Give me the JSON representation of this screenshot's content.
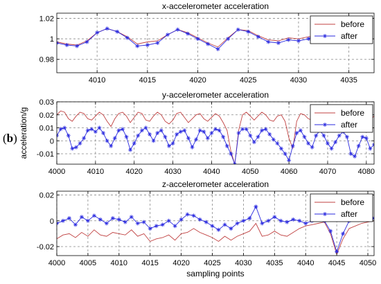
{
  "panel_label_open": "(",
  "panel_label_letter": "b",
  "panel_label_close": ")",
  "colors": {
    "before": "#c04040",
    "after": "#2a2adf",
    "grid": "#888888"
  },
  "chart_data": [
    {
      "type": "line",
      "title": "x-accelerometer acceleration",
      "xlabel": "",
      "ylabel": "",
      "xlim": [
        4006,
        4037.5
      ],
      "ylim": [
        0.967,
        1.025
      ],
      "xticks": [
        4010,
        4015,
        4020,
        4025,
        4030,
        4035
      ],
      "yticks": [
        0.98,
        1,
        1.02
      ],
      "ytick_labels": [
        "0.98",
        "1",
        "1.02"
      ],
      "legend": "top-right",
      "grid": true,
      "series": [
        {
          "name": "before",
          "style": "line",
          "color": "#c04040",
          "x": [
            4006,
            4007,
            4008,
            4009,
            4010,
            4011,
            4012,
            4013,
            4014,
            4015,
            4016,
            4017,
            4018,
            4019,
            4020,
            4021,
            4022,
            4023,
            4024,
            4025,
            4026,
            4027,
            4028,
            4029,
            4030,
            4031,
            4032,
            4033,
            4034,
            4035,
            4036,
            4037
          ],
          "y": [
            0.997,
            0.995,
            0.994,
            0.998,
            1.006,
            1.01,
            1.007,
            1.002,
            0.995,
            0.997,
            0.998,
            1.004,
            1.009,
            1.006,
            1.001,
            0.996,
            0.992,
            1.001,
            1.009,
            1.008,
            1.003,
            0.999,
            0.998,
            1.001,
            1.0,
            1.002,
            1.004,
            1.002,
            1.006,
            1.006,
            1.004,
            1.008
          ]
        },
        {
          "name": "after",
          "style": "line-star",
          "color": "#2a2adf",
          "x": [
            4006,
            4007,
            4008,
            4009,
            4010,
            4011,
            4012,
            4013,
            4014,
            4015,
            4016,
            4017,
            4018,
            4019,
            4020,
            4021,
            4022,
            4023,
            4024,
            4025,
            4026,
            4027,
            4028,
            4029,
            4030,
            4031,
            4032,
            4033,
            4034,
            4035,
            4036,
            4037
          ],
          "y": [
            0.996,
            0.994,
            0.993,
            0.997,
            1.006,
            1.01,
            1.007,
            1.001,
            0.993,
            0.994,
            0.996,
            1.004,
            1.009,
            1.005,
            1.0,
            0.995,
            0.99,
            1.0,
            1.009,
            1.007,
            1.002,
            0.997,
            0.996,
            0.999,
            0.998,
            1.0,
            1.003,
            1.001,
            1.004,
            1.003,
            1.0,
            1.002
          ]
        }
      ]
    },
    {
      "type": "line",
      "title": "y-accelerometer acceleration",
      "xlabel": "",
      "ylabel": "acceleration/g",
      "xlim": [
        4000,
        4082
      ],
      "ylim": [
        -0.018,
        0.03
      ],
      "xticks": [
        4000,
        4010,
        4020,
        4030,
        4040,
        4050,
        4060,
        4070,
        4080
      ],
      "yticks": [
        -0.01,
        0,
        0.01,
        0.02,
        0.03
      ],
      "ytick_labels": [
        "-0.01",
        "0",
        "0.01",
        "0.02",
        "0.03"
      ],
      "legend": "top-right",
      "grid": true,
      "series": [
        {
          "name": "before",
          "style": "line",
          "color": "#c04040",
          "x": [
            4000,
            4001,
            4002,
            4003,
            4004,
            4005,
            4006,
            4007,
            4008,
            4009,
            4010,
            4011,
            4012,
            4013,
            4014,
            4015,
            4016,
            4017,
            4018,
            4019,
            4020,
            4021,
            4022,
            4023,
            4024,
            4025,
            4026,
            4027,
            4028,
            4029,
            4030,
            4031,
            4032,
            4033,
            4034,
            4035,
            4036,
            4037,
            4038,
            4039,
            4040,
            4041,
            4042,
            4043,
            4044,
            4045,
            4046,
            4047,
            4048,
            4049,
            4050,
            4051,
            4052,
            4053,
            4054,
            4055,
            4056,
            4057,
            4058,
            4059,
            4060,
            4061,
            4062,
            4063,
            4064,
            4065,
            4066,
            4067,
            4068,
            4069,
            4070,
            4071,
            4072,
            4073,
            4074,
            4075,
            4076,
            4077,
            4078,
            4079,
            4080,
            4081,
            4082
          ],
          "y": [
            0.02,
            0.023,
            0.022,
            0.017,
            0.015,
            0.019,
            0.022,
            0.021,
            0.017,
            0.016,
            0.019,
            0.022,
            0.02,
            0.015,
            0.011,
            0.017,
            0.021,
            0.022,
            0.019,
            0.014,
            0.018,
            0.022,
            0.021,
            0.016,
            0.015,
            0.019,
            0.022,
            0.02,
            0.015,
            0.013,
            0.016,
            0.021,
            0.022,
            0.018,
            0.014,
            0.017,
            0.02,
            0.021,
            0.017,
            0.015,
            0.018,
            0.021,
            0.019,
            0.014,
            0.008,
            -0.008,
            -0.018,
            0.008,
            0.02,
            0.022,
            0.019,
            0.016,
            0.019,
            0.022,
            0.02,
            0.016,
            0.015,
            0.019,
            0.02,
            0.015,
            0.002,
            -0.006,
            0.015,
            0.021,
            0.02,
            0.017,
            0.016,
            0.019,
            0.021,
            0.02,
            0.016,
            0.014,
            0.018,
            0.021,
            0.02,
            0.016,
            0.013,
            0.016,
            0.02,
            0.021,
            0.018,
            0.016,
            0.019
          ]
        },
        {
          "name": "after",
          "style": "line-star",
          "color": "#2a2adf",
          "x": [
            4000,
            4001,
            4002,
            4003,
            4004,
            4005,
            4006,
            4007,
            4008,
            4009,
            4010,
            4011,
            4012,
            4013,
            4014,
            4015,
            4016,
            4017,
            4018,
            4019,
            4020,
            4021,
            4022,
            4023,
            4024,
            4025,
            4026,
            4027,
            4028,
            4029,
            4030,
            4031,
            4032,
            4033,
            4034,
            4035,
            4036,
            4037,
            4038,
            4039,
            4040,
            4041,
            4042,
            4043,
            4044,
            4045,
            4046,
            4047,
            4048,
            4049,
            4050,
            4051,
            4052,
            4053,
            4054,
            4055,
            4056,
            4057,
            4058,
            4059,
            4060,
            4061,
            4062,
            4063,
            4064,
            4065,
            4066,
            4067,
            4068,
            4069,
            4070,
            4071,
            4072,
            4073,
            4074,
            4075,
            4076,
            4077,
            4078,
            4079,
            4080,
            4081,
            4082
          ],
          "y": [
            0.004,
            0.009,
            0.01,
            0.004,
            -0.006,
            -0.005,
            -0.002,
            0.002,
            0.008,
            0.009,
            0.007,
            0.01,
            0.006,
            0.0,
            -0.004,
            0.002,
            0.008,
            0.009,
            0.003,
            -0.007,
            -0.002,
            0.004,
            0.008,
            0.01,
            0.005,
            0.0,
            0.006,
            0.008,
            0.003,
            -0.004,
            -0.002,
            0.005,
            0.007,
            0.008,
            0.002,
            -0.005,
            0.001,
            0.008,
            0.007,
            0.002,
            0.006,
            0.009,
            0.008,
            0.003,
            -0.004,
            -0.01,
            -0.018,
            0.006,
            0.009,
            0.009,
            0.004,
            -0.001,
            0.003,
            0.008,
            0.009,
            0.005,
            0.001,
            -0.002,
            -0.006,
            -0.01,
            -0.015,
            -0.004,
            0.006,
            0.008,
            0.003,
            -0.002,
            -0.005,
            0.004,
            0.008,
            0.004,
            -0.002,
            -0.006,
            -0.001,
            0.004,
            0.007,
            0.003,
            -0.01,
            -0.012,
            -0.004,
            0.003,
            0.002,
            -0.006,
            -0.003
          ]
        }
      ]
    },
    {
      "type": "line",
      "title": "z-accelerometer acceleration",
      "xlabel": "sampling points",
      "ylabel": "",
      "xlim": [
        4000,
        4051
      ],
      "ylim": [
        -0.027,
        0.023
      ],
      "xticks": [
        4000,
        4005,
        4010,
        4015,
        4020,
        4025,
        4030,
        4035,
        4040,
        4045,
        4050
      ],
      "yticks": [
        -0.02,
        0,
        0.02
      ],
      "ytick_labels": [
        "-0.02",
        "0",
        "0.02"
      ],
      "legend": "top-right",
      "grid": true,
      "series": [
        {
          "name": "before",
          "style": "line",
          "color": "#c04040",
          "x": [
            4000,
            4001,
            4002,
            4003,
            4004,
            4005,
            4006,
            4007,
            4008,
            4009,
            4010,
            4011,
            4012,
            4013,
            4014,
            4015,
            4016,
            4017,
            4018,
            4019,
            4020,
            4021,
            4022,
            4023,
            4024,
            4025,
            4026,
            4027,
            4028,
            4029,
            4030,
            4031,
            4032,
            4033,
            4034,
            4035,
            4036,
            4037,
            4038,
            4039,
            4040,
            4041,
            4042,
            4043,
            4044,
            4045,
            4046,
            4047,
            4048,
            4049,
            4050,
            4051
          ],
          "y": [
            -0.014,
            -0.011,
            -0.01,
            -0.013,
            -0.009,
            -0.012,
            -0.007,
            -0.011,
            -0.012,
            -0.009,
            -0.01,
            -0.011,
            -0.007,
            -0.012,
            -0.01,
            -0.016,
            -0.014,
            -0.013,
            -0.011,
            -0.015,
            -0.01,
            -0.009,
            -0.006,
            -0.009,
            -0.011,
            -0.013,
            -0.016,
            -0.012,
            -0.015,
            -0.012,
            -0.01,
            -0.008,
            -0.002,
            -0.012,
            -0.011,
            -0.008,
            -0.011,
            -0.012,
            -0.009,
            -0.006,
            -0.004,
            -0.003,
            -0.002,
            -0.001,
            -0.01,
            -0.026,
            -0.014,
            -0.006,
            -0.004,
            -0.002,
            -0.001,
            0.0
          ]
        },
        {
          "name": "after",
          "style": "line-star",
          "color": "#2a2adf",
          "x": [
            4000,
            4001,
            4002,
            4003,
            4004,
            4005,
            4006,
            4007,
            4008,
            4009,
            4010,
            4011,
            4012,
            4013,
            4014,
            4015,
            4016,
            4017,
            4018,
            4019,
            4020,
            4021,
            4022,
            4023,
            4024,
            4025,
            4026,
            4027,
            4028,
            4029,
            4030,
            4031,
            4032,
            4033,
            4034,
            4035,
            4036,
            4037,
            4038,
            4039,
            4040,
            4041,
            4042,
            4043,
            4044,
            4045,
            4046,
            4047,
            4048,
            4049,
            4050,
            4051
          ],
          "y": [
            -0.002,
            0.0,
            0.002,
            -0.003,
            0.003,
            0.0,
            0.004,
            0.001,
            -0.002,
            0.002,
            0.001,
            -0.001,
            0.003,
            -0.002,
            -0.001,
            -0.006,
            -0.004,
            -0.003,
            0.0,
            -0.004,
            0.001,
            0.005,
            0.004,
            0.001,
            -0.001,
            -0.004,
            -0.007,
            -0.003,
            -0.006,
            -0.002,
            0.0,
            0.002,
            0.011,
            -0.002,
            0.0,
            0.003,
            0.0,
            -0.001,
            0.001,
            0.0,
            -0.002,
            0.0,
            0.001,
            0.0,
            -0.008,
            -0.024,
            -0.01,
            0.0,
            0.002,
            0.003,
            0.001,
            0.002
          ]
        }
      ]
    }
  ]
}
